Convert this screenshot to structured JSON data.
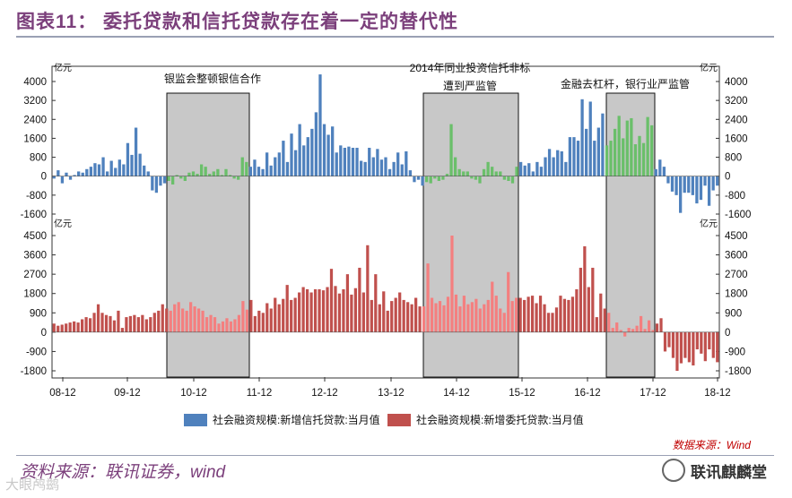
{
  "title": "图表11： 委托贷款和信托贷款存在着一定的替代性",
  "chart_data": [
    {
      "type": "bar",
      "unit_label": "亿元",
      "series": [
        {
          "name": "社会融资规模:新增信托贷款:当月值",
          "color": "#4f81bd",
          "highlight_color": "#6abf6a"
        }
      ],
      "ylim": [
        -1600,
        4000
      ],
      "yticks": [
        -1600,
        -800,
        0,
        800,
        1600,
        2400,
        3200,
        4000
      ],
      "values": [
        -100,
        250,
        -300,
        150,
        -150,
        50,
        200,
        150,
        300,
        400,
        550,
        500,
        800,
        200,
        650,
        350,
        700,
        500,
        1400,
        900,
        2050,
        950,
        450,
        200,
        -600,
        -700,
        -400,
        -300,
        -200,
        -350,
        50,
        -100,
        -200,
        150,
        200,
        100,
        500,
        400,
        100,
        200,
        300,
        50,
        300,
        50,
        -100,
        -150,
        800,
        600,
        400,
        700,
        400,
        300,
        1000,
        450,
        800,
        1000,
        1500,
        600,
        1800,
        1100,
        2200,
        1300,
        1650,
        2000,
        2700,
        4300,
        2200,
        1750,
        2100,
        1000,
        1300,
        1200,
        1250,
        1200,
        1200,
        650,
        600,
        1200,
        800,
        1150,
        700,
        800,
        300,
        600,
        1000,
        500,
        1050,
        250,
        -250,
        -150,
        -400,
        -250,
        -300,
        -100,
        -200,
        -150,
        100,
        2200,
        800,
        300,
        200,
        200,
        -100,
        -150,
        -300,
        300,
        600,
        400,
        200,
        200,
        -150,
        -200,
        -300,
        400,
        600,
        450,
        550,
        200,
        600,
        400,
        800,
        1150,
        800,
        1100,
        1050,
        600,
        1650,
        1650,
        1500,
        3250,
        2000,
        3150,
        1500,
        2050,
        2650,
        1300,
        1500,
        2000,
        2550,
        1600,
        2350,
        2450,
        1350,
        1700,
        1400,
        2500,
        2150,
        300,
        700,
        400,
        -300,
        -650,
        -800,
        -1550,
        -700,
        -700,
        -800,
        -1150,
        -1000,
        -400,
        -1250,
        -600,
        -400
      ]
    },
    {
      "type": "bar",
      "unit_label": "亿元",
      "series": [
        {
          "name": "社会融资规模:新增委托贷款:当月值",
          "color": "#c0504d",
          "highlight_color": "#f47f7f"
        }
      ],
      "ylim": [
        -1800,
        4500
      ],
      "yticks": [
        -1800,
        -900,
        0,
        900,
        1800,
        2700,
        3600,
        4500
      ],
      "values": [
        400,
        300,
        350,
        400,
        450,
        500,
        450,
        600,
        700,
        650,
        900,
        1300,
        900,
        800,
        750,
        550,
        1000,
        200,
        700,
        750,
        800,
        700,
        800,
        600,
        700,
        900,
        1000,
        1300,
        1100,
        1000,
        1300,
        1400,
        1100,
        1000,
        1400,
        1200,
        1100,
        1000,
        700,
        800,
        700,
        400,
        500,
        650,
        500,
        600,
        800,
        1450,
        1050,
        1500,
        750,
        1000,
        900,
        1350,
        1100,
        1600,
        1300,
        1550,
        2200,
        1500,
        1600,
        1850,
        2100,
        2000,
        1850,
        2000,
        2000,
        1950,
        2100,
        2950,
        2150,
        1800,
        2000,
        2700,
        1750,
        2050,
        3000,
        1850,
        4050,
        1500,
        2700,
        1300,
        1900,
        1000,
        1450,
        1600,
        1850,
        1500,
        1400,
        1300,
        1600,
        1200,
        1200,
        3200,
        1600,
        1350,
        1450,
        1250,
        1650,
        4500,
        1750,
        1200,
        1700,
        1300,
        1400,
        1550,
        1100,
        1300,
        1500,
        2350,
        1700,
        1100,
        900,
        2800,
        1450,
        1600,
        1600,
        1500,
        1650,
        1700,
        1350,
        1700,
        1300,
        900,
        900,
        1150,
        1700,
        1550,
        1500,
        1650,
        2000,
        3000,
        4000,
        2100,
        3000,
        700,
        1800,
        1100,
        900,
        200,
        450,
        100,
        -200,
        200,
        150,
        300,
        750,
        150,
        550,
        100,
        400,
        650,
        -900,
        -700,
        -1200,
        -1800,
        -1450,
        -1200,
        -1400,
        -1550,
        -800,
        -1000,
        -1350,
        -800,
        -1200,
        -1400
      ]
    }
  ],
  "x_tick_labels": [
    "08-12",
    "09-12",
    "10-12",
    "11-12",
    "12-12",
    "13-12",
    "14-12",
    "15-12",
    "16-12",
    "17-12",
    "18-12"
  ],
  "shaded_periods": [
    {
      "label": "银监会整顿银信合作"
    },
    {
      "label_lines": [
        "2014年同业投资信托非标",
        "遭到严监管"
      ]
    },
    {
      "label": "金融去杠杆，银行业严监管"
    }
  ],
  "legend": {
    "trust_label": "社会融资规模:新增信托贷款:当月值",
    "entrusted_label": "社会融资规模:新增委托贷款:当月值"
  },
  "chart_source_note": "数据来源：Wind",
  "source": "资料来源：联讯证券，wind",
  "brand": "联讯麒麟堂",
  "watermark": "大眼鸬鹚"
}
